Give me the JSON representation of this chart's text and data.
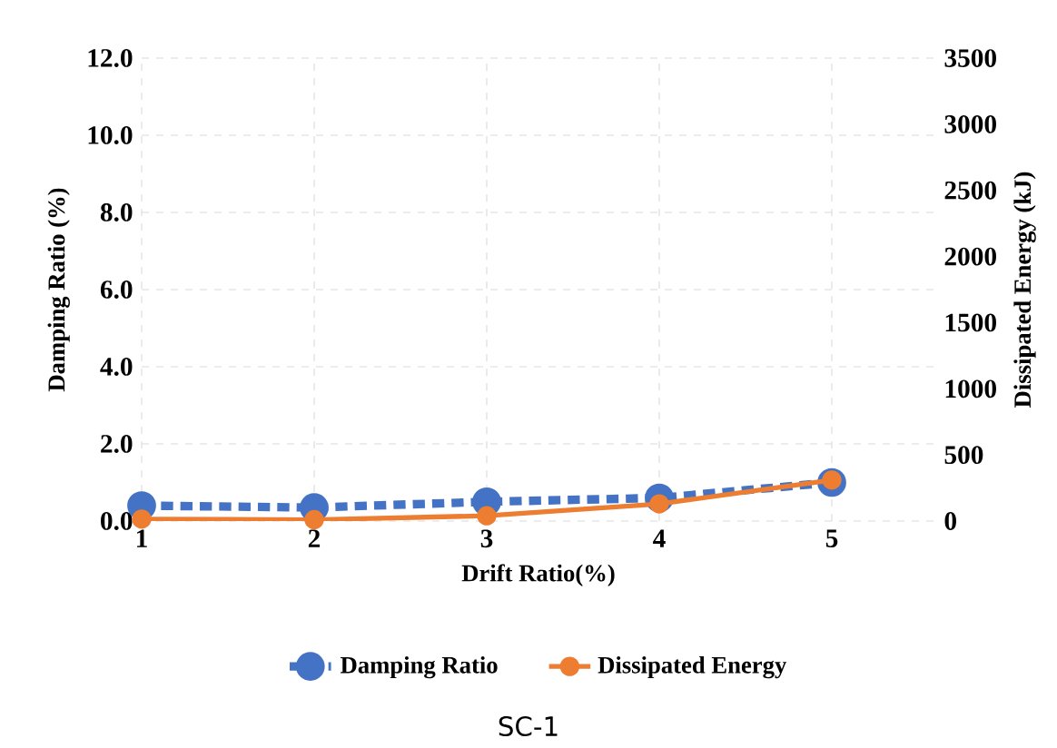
{
  "chart_data": {
    "type": "line",
    "xlabel": "Drift Ratio(%)",
    "ylabel": "Damping Ratio (%)",
    "y2label": "Dissipated Energy (kJ)",
    "x": [
      1,
      2,
      3,
      4,
      5
    ],
    "xlim": [
      1,
      5.6
    ],
    "xticks": [
      1,
      2,
      3,
      4,
      5
    ],
    "ylim": [
      0,
      12
    ],
    "yticks": [
      {
        "value": 0,
        "label": "0.0"
      },
      {
        "value": 2,
        "label": "2.0"
      },
      {
        "value": 4,
        "label": "4.0"
      },
      {
        "value": 6,
        "label": "6.0"
      },
      {
        "value": 8,
        "label": "8.0"
      },
      {
        "value": 10,
        "label": "10.0"
      },
      {
        "value": 12,
        "label": "12.0"
      }
    ],
    "y2lim": [
      0,
      3500
    ],
    "y2ticks": [
      0,
      500,
      1000,
      1500,
      2000,
      2500,
      3000,
      3500
    ],
    "series": [
      {
        "name": "Damping Ratio",
        "color": "#4472c4",
        "values": [
          0.4,
          0.35,
          0.5,
          0.6,
          1.0
        ],
        "line_style": "dashed"
      },
      {
        "name": "Dissipated Energy",
        "color": "#ed7d31",
        "values": [
          15,
          10,
          40,
          130,
          310
        ],
        "axis": "y2",
        "line_style": "solid"
      }
    ],
    "marker": "circle",
    "grid": true,
    "legend": "bottom",
    "annotations": [
      "SC-1"
    ]
  }
}
